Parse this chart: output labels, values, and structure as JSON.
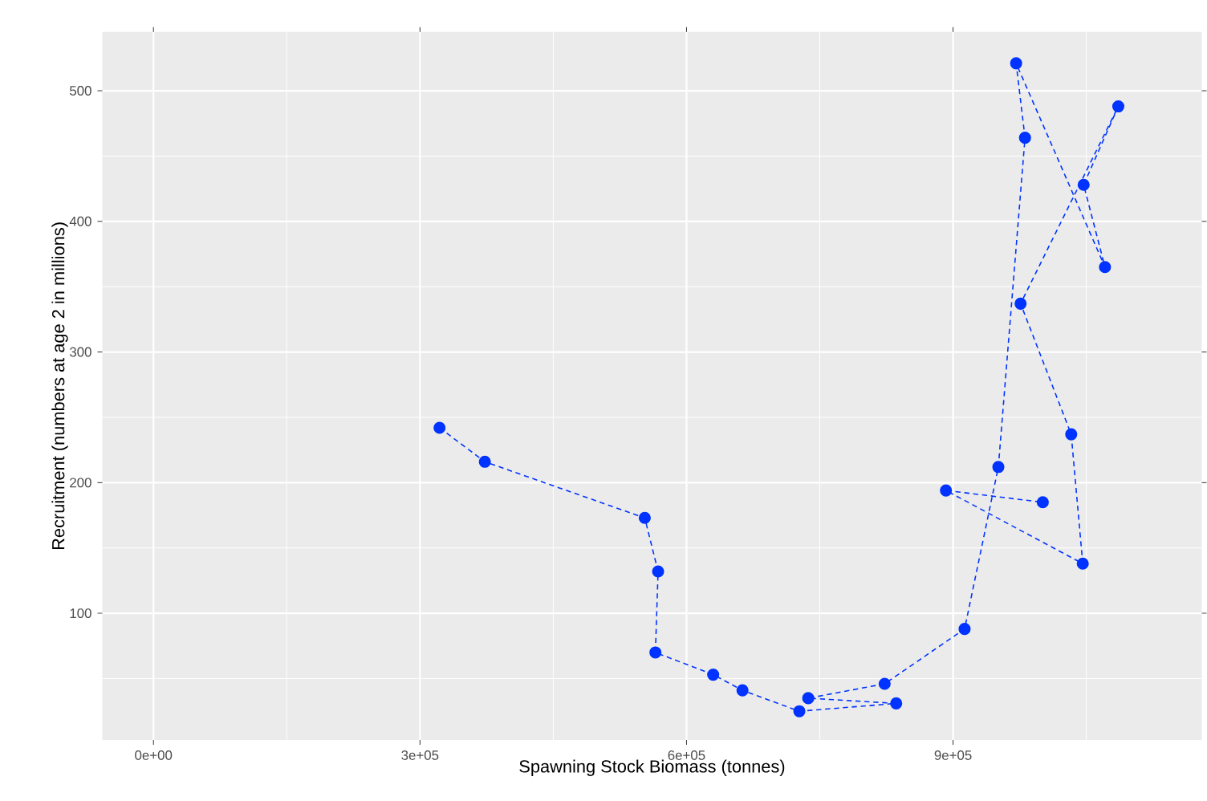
{
  "chart_data": {
    "type": "line",
    "xlabel": "Spawning Stock Biomass (tonnes)",
    "ylabel": "Recruitment (numbers at age 2 in millions)",
    "xlim": [
      -57600,
      1180000
    ],
    "ylim": [
      3,
      545
    ],
    "xticks": [
      {
        "value": 0,
        "label": "0e+00"
      },
      {
        "value": 300000,
        "label": "3e+05"
      },
      {
        "value": 600000,
        "label": "6e+05"
      },
      {
        "value": 900000,
        "label": "9e+05"
      }
    ],
    "yticks": [
      100,
      200,
      300,
      400,
      500
    ],
    "grid": true,
    "marker": "circle",
    "line_style": "dashed",
    "series": [
      {
        "color": "#0033ff",
        "x": [
          322000,
          373000,
          553000,
          568000,
          565000,
          630000,
          663000,
          727000,
          836000,
          737000,
          823000,
          913000,
          951000,
          981000,
          971000,
          1071000,
          1047000,
          1086000,
          976000,
          1033000,
          1046000,
          892000,
          1001000
        ],
        "values": [
          242,
          216,
          173,
          132,
          70,
          53,
          41,
          25,
          31,
          35,
          46,
          88,
          212,
          464,
          521,
          365,
          428,
          488,
          337,
          237,
          138,
          194,
          185
        ]
      }
    ]
  }
}
